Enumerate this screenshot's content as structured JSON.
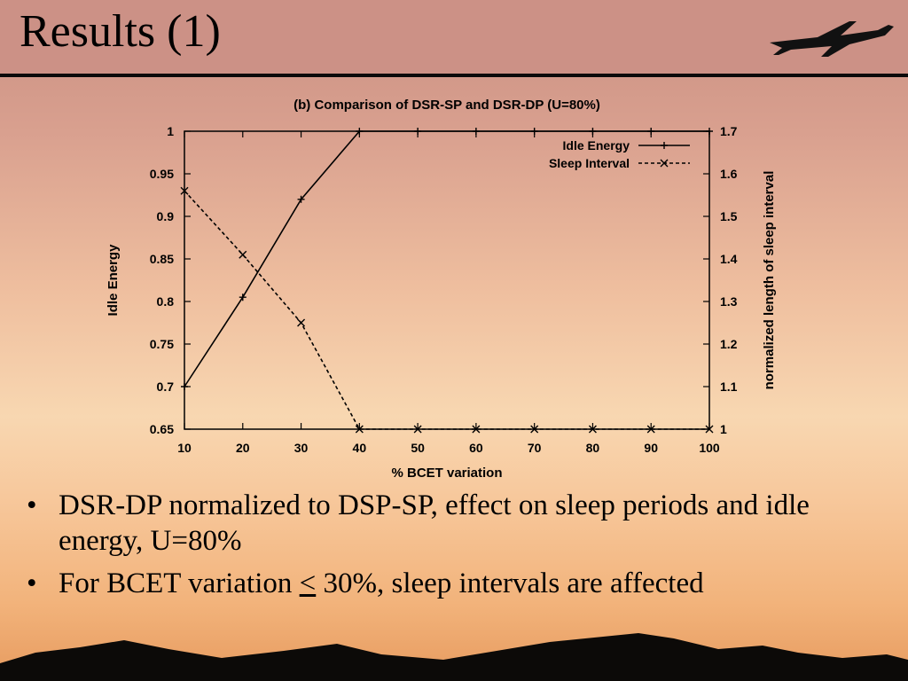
{
  "slide": {
    "title": "Results (1)",
    "bullets": [
      {
        "text": "DSR-DP normalized to DSP-SP, effect on sleep periods and idle energy, U=80%"
      },
      {
        "pre": "For BCET variation ",
        "sym": "<",
        "post": " 30%, sleep intervals are affected"
      }
    ]
  },
  "chart_data": {
    "type": "line",
    "title": "(b) Comparison of DSR-SP and DSR-DP (U=80%)",
    "xlabel": "% BCET variation",
    "ylabel": "Idle Energy",
    "y2label": "normalized length of sleep interval",
    "x": [
      10,
      20,
      30,
      40,
      50,
      60,
      70,
      80,
      90,
      100
    ],
    "xlim": [
      10,
      100
    ],
    "ylim": [
      0.65,
      1
    ],
    "y2lim": [
      1,
      1.7
    ],
    "x_ticks": [
      "10",
      "20",
      "30",
      "40",
      "50",
      "60",
      "70",
      "80",
      "90",
      "100"
    ],
    "y_ticks": [
      "0.65",
      "0.7",
      "0.75",
      "0.8",
      "0.85",
      "0.9",
      "0.95",
      "1"
    ],
    "y2_ticks": [
      "1",
      "1.1",
      "1.2",
      "1.3",
      "1.4",
      "1.5",
      "1.6",
      "1.7"
    ],
    "grid": false,
    "legend_position": "top-right",
    "series": [
      {
        "name": "Idle Energy",
        "axis": "left",
        "style": "solid",
        "marker": "+",
        "values": [
          0.7,
          0.805,
          0.92,
          1,
          1,
          1,
          1,
          1,
          1,
          1
        ]
      },
      {
        "name": "Sleep Interval",
        "axis": "right",
        "style": "dashed",
        "marker": "x",
        "values": [
          1.56,
          1.41,
          1.25,
          1,
          1,
          1,
          1,
          1,
          1,
          1
        ]
      }
    ]
  }
}
